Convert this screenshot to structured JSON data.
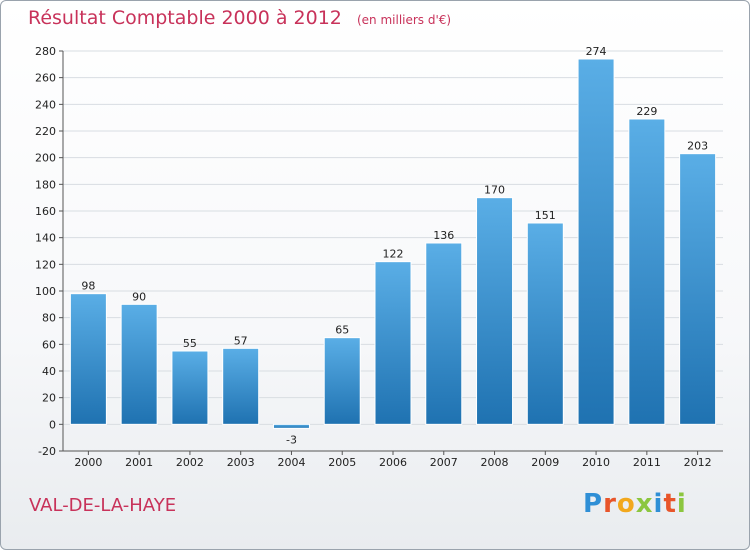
{
  "header": {
    "title": "Résultat Comptable 2000 à 2012",
    "subtitle": "(en milliers d'€)"
  },
  "footer": {
    "commune": "VAL-DE-LA-HAYE",
    "logo": "Proxiti"
  },
  "colors": {
    "title": "#c8325a",
    "bar_light": "#5aaee6",
    "bar_dark": "#1f72b1",
    "grid": "#d8dde2",
    "axis": "#555555"
  },
  "chart_data": {
    "type": "bar",
    "title": "Résultat Comptable 2000 à 2012",
    "subtitle": "(en milliers d'€)",
    "categories": [
      "2000",
      "2001",
      "2002",
      "2003",
      "2004",
      "2005",
      "2006",
      "2007",
      "2008",
      "2009",
      "2010",
      "2011",
      "2012"
    ],
    "values": [
      98,
      90,
      55,
      57,
      -3,
      65,
      122,
      136,
      170,
      151,
      274,
      229,
      203
    ],
    "data_labels": [
      "98",
      "90",
      "55",
      "57",
      "-3",
      "65",
      "122",
      "136",
      "170",
      "151",
      "274",
      "229",
      "203"
    ],
    "yticks": [
      -20,
      0,
      20,
      40,
      60,
      80,
      100,
      120,
      140,
      160,
      180,
      200,
      220,
      240,
      260,
      280
    ],
    "ylim": [
      -20,
      280
    ],
    "xlabel": "",
    "ylabel": "",
    "grid": true
  }
}
